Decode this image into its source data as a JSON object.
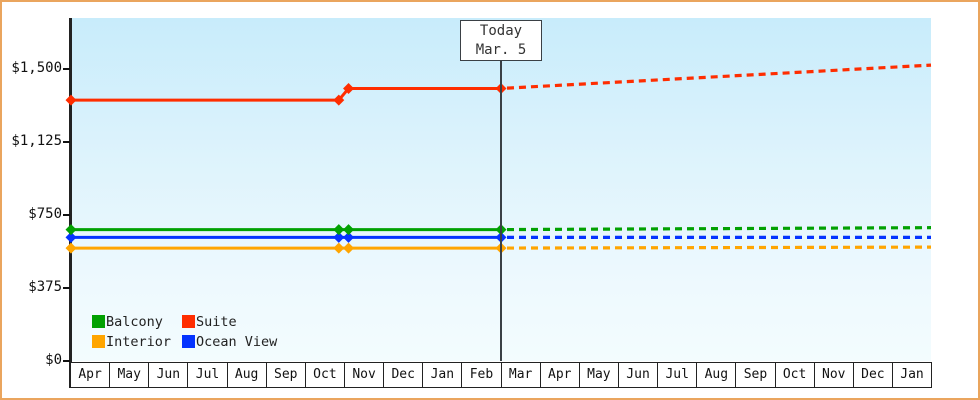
{
  "frame": {
    "border_color": "#eaa55e"
  },
  "chart_data": {
    "type": "line",
    "x_axis": {
      "months": [
        "Apr",
        "May",
        "Jun",
        "Jul",
        "Aug",
        "Sep",
        "Oct",
        "Nov",
        "Dec",
        "Jan",
        "Feb",
        "Mar",
        "Apr",
        "May",
        "Jun",
        "Jul",
        "Aug",
        "Sep",
        "Oct",
        "Nov",
        "Dec",
        "Jan"
      ]
    },
    "y_axis": {
      "ticks": [
        {
          "label": "$1,500",
          "value": 1500
        },
        {
          "label": "$1,125",
          "value": 1125
        },
        {
          "label": "$750",
          "value": 750
        },
        {
          "label": "$375",
          "value": 375
        },
        {
          "label": "$0",
          "value": 0
        }
      ],
      "range": [
        0,
        1875
      ]
    },
    "today": {
      "title": "Today",
      "date": "Mar. 5",
      "month_offset": 11
    },
    "series": [
      {
        "name": "Interior",
        "color": "#ffa500",
        "history": [
          [
            0,
            580
          ],
          [
            6.85,
            580
          ],
          [
            7.1,
            580
          ],
          [
            11,
            580
          ]
        ],
        "forecast": [
          [
            11,
            580
          ],
          [
            22,
            585
          ]
        ]
      },
      {
        "name": "Ocean View",
        "color": "#0433ff",
        "history": [
          [
            0,
            635
          ],
          [
            6.85,
            635
          ],
          [
            7.1,
            635
          ],
          [
            11,
            635
          ]
        ],
        "forecast": [
          [
            11,
            635
          ],
          [
            22,
            635
          ]
        ]
      },
      {
        "name": "Balcony",
        "color": "#02a102",
        "history": [
          [
            0,
            675
          ],
          [
            6.85,
            675
          ],
          [
            7.1,
            675
          ],
          [
            11,
            675
          ]
        ],
        "forecast": [
          [
            11,
            675
          ],
          [
            22,
            685
          ]
        ]
      },
      {
        "name": "Suite",
        "color": "#ff2d00",
        "history": [
          [
            0,
            1340
          ],
          [
            6.85,
            1340
          ],
          [
            7.1,
            1400
          ],
          [
            11,
            1400
          ]
        ],
        "forecast": [
          [
            11,
            1400
          ],
          [
            22,
            1520
          ]
        ]
      }
    ],
    "legend": [
      {
        "label": "Balcony",
        "color": "#02a102"
      },
      {
        "label": "Suite",
        "color": "#ff2d00"
      },
      {
        "label": "Interior",
        "color": "#ffa500"
      },
      {
        "label": "Ocean View",
        "color": "#0433ff"
      }
    ]
  }
}
